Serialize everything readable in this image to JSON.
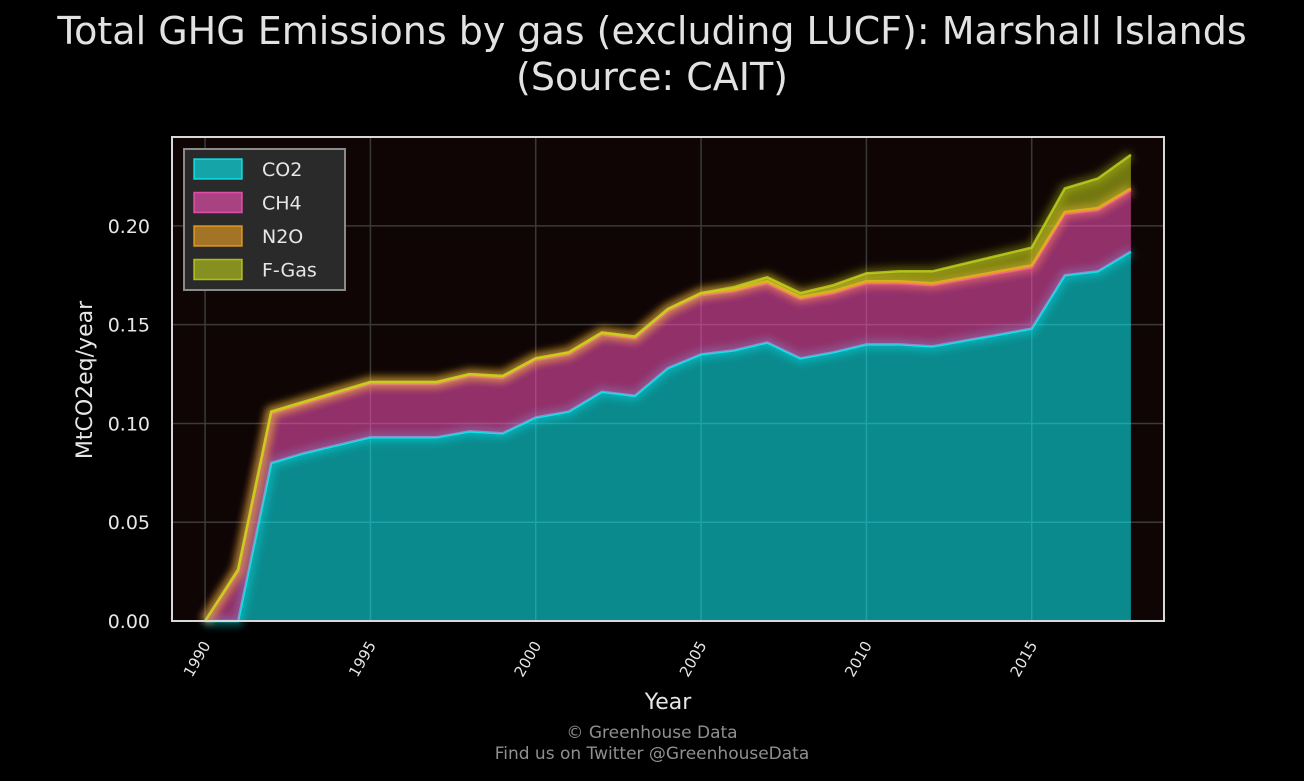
{
  "colors": {
    "background": "#000000",
    "plot_background": "#0f0505",
    "CO2": "#08f7fe",
    "CH4": "#fe53bb",
    "N2O": "#f5a623",
    "F-Gas": "#c5d51a"
  },
  "footer": {
    "line1": "© Greenhouse Data",
    "line2": "Find us on Twitter @GreenhouseData"
  },
  "chart_data": {
    "type": "area",
    "stacked": true,
    "title_line1": "Total GHG Emissions by gas (excluding LUCF): Marshall Islands",
    "title_line2": "(Source: CAIT)",
    "xlabel": "Year",
    "ylabel": "MtCO2eq/year",
    "xlim": [
      1989,
      2019
    ],
    "ylim": [
      0,
      0.245
    ],
    "xticks": [
      "1990",
      "1995",
      "2000",
      "2005",
      "2010",
      "2015"
    ],
    "yticks": [
      "0.00",
      "0.05",
      "0.10",
      "0.15",
      "0.20"
    ],
    "grid": true,
    "legend_position": "upper-left",
    "x": [
      1990,
      1991,
      1992,
      1993,
      1994,
      1995,
      1996,
      1997,
      1998,
      1999,
      2000,
      2001,
      2002,
      2003,
      2004,
      2005,
      2006,
      2007,
      2008,
      2009,
      2010,
      2011,
      2012,
      2013,
      2014,
      2015,
      2016,
      2017,
      2018
    ],
    "series": [
      {
        "name": "CO2",
        "values": [
          0,
          0,
          0.08,
          0.085,
          0.089,
          0.093,
          0.093,
          0.093,
          0.096,
          0.095,
          0.103,
          0.106,
          0.116,
          0.114,
          0.128,
          0.135,
          0.137,
          0.141,
          0.133,
          0.136,
          0.14,
          0.14,
          0.139,
          0.142,
          0.145,
          0.148,
          0.175,
          0.177,
          0.187
        ]
      },
      {
        "name": "CH4",
        "values": [
          0,
          0.025,
          0.025,
          0.025,
          0.026,
          0.027,
          0.027,
          0.027,
          0.028,
          0.028,
          0.029,
          0.029,
          0.029,
          0.029,
          0.029,
          0.03,
          0.03,
          0.03,
          0.03,
          0.03,
          0.031,
          0.031,
          0.031,
          0.031,
          0.031,
          0.031,
          0.031,
          0.031,
          0.031
        ]
      },
      {
        "name": "N2O",
        "values": [
          0,
          0.001,
          0.001,
          0.001,
          0.001,
          0.001,
          0.001,
          0.001,
          0.001,
          0.001,
          0.001,
          0.001,
          0.001,
          0.001,
          0.001,
          0.001,
          0.001,
          0.001,
          0.001,
          0.001,
          0.001,
          0.001,
          0.001,
          0.001,
          0.001,
          0.001,
          0.001,
          0.001,
          0.001
        ]
      },
      {
        "name": "F-Gas",
        "values": [
          0,
          0,
          0,
          0,
          0,
          0,
          0,
          0,
          0,
          0,
          0,
          0,
          0,
          0,
          0,
          0,
          0.001,
          0.002,
          0.002,
          0.003,
          0.004,
          0.005,
          0.006,
          0.007,
          0.008,
          0.009,
          0.012,
          0.015,
          0.017
        ]
      }
    ]
  }
}
